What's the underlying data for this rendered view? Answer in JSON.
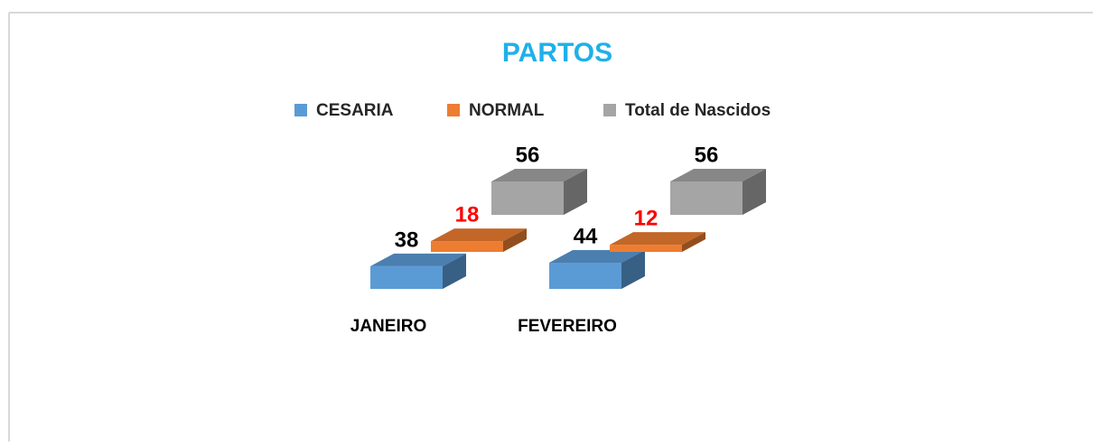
{
  "chart_data": {
    "type": "bar3d",
    "title": "PARTOS",
    "categories": [
      "JANEIRO",
      "FEVEREIRO"
    ],
    "series": [
      {
        "name": "CESARIA",
        "color": "#5b9bd5",
        "label_color": "#000000",
        "values": [
          38,
          44
        ]
      },
      {
        "name": "NORMAL",
        "color": "#ed7d31",
        "label_color": "#ff0000",
        "values": [
          18,
          12
        ]
      },
      {
        "name": "Total de Nascidos",
        "color": "#a5a5a5",
        "label_color": "#000000",
        "values": [
          56,
          56
        ]
      }
    ],
    "legend": "top"
  }
}
